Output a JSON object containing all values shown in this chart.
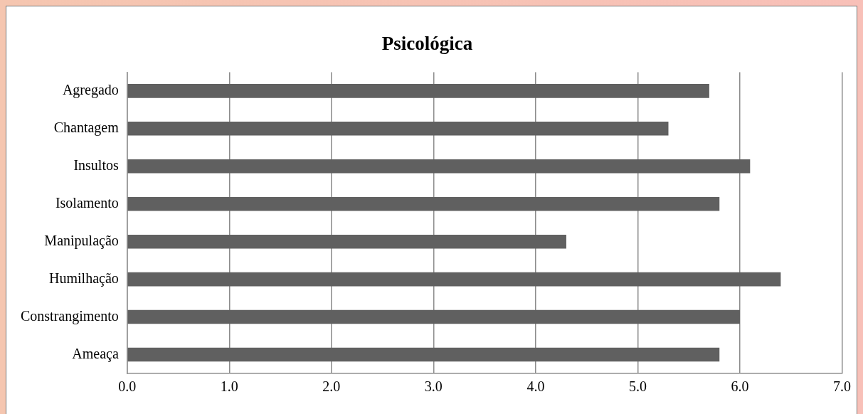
{
  "chart_data": {
    "type": "bar",
    "orientation": "horizontal",
    "title": "Psicológica",
    "categories": [
      "Agregado",
      "Chantagem",
      "Insultos",
      "Isolamento",
      "Manipulação",
      "Humilhação",
      "Constrangimento",
      "Ameaça"
    ],
    "values": [
      5.7,
      5.3,
      6.1,
      5.8,
      4.3,
      6.4,
      6.0,
      5.8
    ],
    "color": "#606060",
    "xlim": [
      0,
      7
    ],
    "xticks": [
      {
        "value": 0,
        "label": "0.0"
      },
      {
        "value": 1,
        "label": "1.0"
      },
      {
        "value": 2,
        "label": "2.0"
      },
      {
        "value": 3,
        "label": "3.0"
      },
      {
        "value": 4,
        "label": "4.0"
      },
      {
        "value": 5,
        "label": "5.0"
      },
      {
        "value": 6,
        "label": "6.0"
      },
      {
        "value": 7,
        "label": "7.0"
      }
    ],
    "grid": "x",
    "legend": false
  }
}
